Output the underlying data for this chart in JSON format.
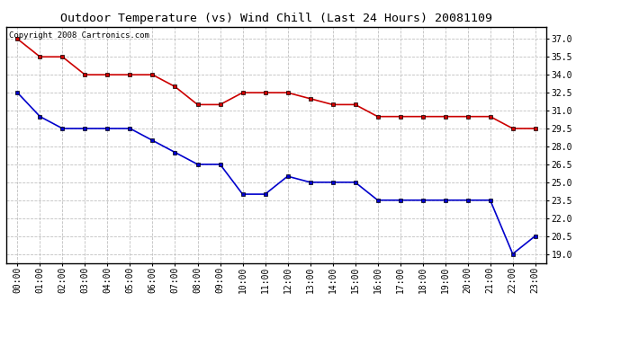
{
  "title": "Outdoor Temperature (vs) Wind Chill (Last 24 Hours) 20081109",
  "copyright_text": "Copyright 2008 Cartronics.com",
  "hours": [
    "00:00",
    "01:00",
    "02:00",
    "03:00",
    "04:00",
    "05:00",
    "06:00",
    "07:00",
    "08:00",
    "09:00",
    "10:00",
    "11:00",
    "12:00",
    "13:00",
    "14:00",
    "15:00",
    "16:00",
    "17:00",
    "18:00",
    "19:00",
    "20:00",
    "21:00",
    "22:00",
    "23:00"
  ],
  "temp": [
    37.0,
    35.5,
    35.5,
    34.0,
    34.0,
    34.0,
    34.0,
    33.0,
    31.5,
    31.5,
    32.5,
    32.5,
    32.5,
    32.0,
    31.5,
    31.5,
    30.5,
    30.5,
    30.5,
    30.5,
    30.5,
    30.5,
    29.5,
    29.5
  ],
  "wind_chill": [
    32.5,
    30.5,
    29.5,
    29.5,
    29.5,
    29.5,
    28.5,
    27.5,
    26.5,
    26.5,
    24.0,
    24.0,
    25.5,
    25.0,
    25.0,
    25.0,
    23.5,
    23.5,
    23.5,
    23.5,
    23.5,
    23.5,
    19.0,
    20.5
  ],
  "temp_color": "#cc0000",
  "wind_chill_color": "#0000cc",
  "background_color": "#ffffff",
  "plot_bg_color": "#ffffff",
  "grid_color": "#c0c0c0",
  "ylim_min": 18.25,
  "ylim_max": 38.0,
  "yticks": [
    19.0,
    20.5,
    22.0,
    23.5,
    25.0,
    26.5,
    28.0,
    29.5,
    31.0,
    32.5,
    34.0,
    35.5,
    37.0
  ],
  "title_fontsize": 9.5,
  "tick_fontsize": 7,
  "copyright_fontsize": 6.5,
  "marker": "s",
  "marker_size": 2.8,
  "line_width": 1.2
}
